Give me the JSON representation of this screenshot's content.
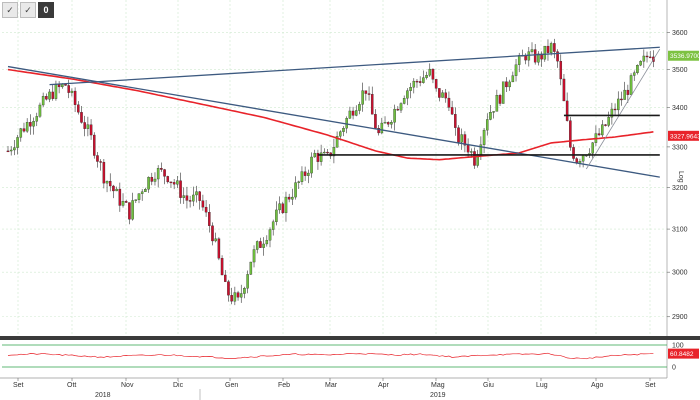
{
  "toolbar": {
    "items": [
      "✓",
      "✓",
      "0"
    ]
  },
  "chart_data": {
    "type": "candlestick",
    "y_ticks": [
      2900,
      3000,
      3100,
      3200,
      3300,
      3400,
      3500,
      3600
    ],
    "ylim": [
      2860,
      3640
    ],
    "x_month_labels": [
      "Set",
      "Ott",
      "Nov",
      "Dic",
      "Gen",
      "Feb",
      "Mar",
      "Apr",
      "Mag",
      "Giu",
      "Lug",
      "Ago",
      "Set"
    ],
    "x_year_labels": [
      "2018",
      "2019"
    ],
    "yaxis_label": "Log",
    "last_price_tag": "3536.9700",
    "ma_tag": "3327.9643",
    "oscillator_tag": "60.8482",
    "oscillator_ticks": [
      100,
      0
    ],
    "oscillator_level": 60.8,
    "colors": {
      "up": "#6fbf3f",
      "down": "#c8102e",
      "moving_average": "#e8232a",
      "trendline": "#3d5a80",
      "support": "#1a1a1a",
      "oscillator": "#e8232a",
      "oscillator_band": "#2ea34a",
      "price_tag": "#7dc242"
    },
    "price_path": [
      [
        0,
        3290
      ],
      [
        4,
        3340
      ],
      [
        10,
        3400
      ],
      [
        14,
        3440
      ],
      [
        18,
        3460
      ],
      [
        22,
        3390
      ],
      [
        26,
        3320
      ],
      [
        30,
        3230
      ],
      [
        34,
        3180
      ],
      [
        38,
        3140
      ],
      [
        42,
        3200
      ],
      [
        46,
        3240
      ],
      [
        50,
        3230
      ],
      [
        56,
        3170
      ],
      [
        60,
        3170
      ],
      [
        64,
        3090
      ],
      [
        68,
        2960
      ],
      [
        72,
        2930
      ],
      [
        76,
        3030
      ],
      [
        80,
        3080
      ],
      [
        84,
        3130
      ],
      [
        88,
        3180
      ],
      [
        92,
        3220
      ],
      [
        96,
        3280
      ],
      [
        100,
        3270
      ],
      [
        104,
        3340
      ],
      [
        108,
        3400
      ],
      [
        112,
        3450
      ],
      [
        114,
        3380
      ],
      [
        116,
        3330
      ],
      [
        120,
        3380
      ],
      [
        124,
        3440
      ],
      [
        128,
        3470
      ],
      [
        132,
        3490
      ],
      [
        134,
        3440
      ],
      [
        138,
        3420
      ],
      [
        140,
        3330
      ],
      [
        144,
        3300
      ],
      [
        146,
        3270
      ],
      [
        150,
        3380
      ],
      [
        154,
        3430
      ],
      [
        158,
        3500
      ],
      [
        162,
        3540
      ],
      [
        166,
        3530
      ],
      [
        170,
        3560
      ],
      [
        172,
        3520
      ],
      [
        174,
        3410
      ],
      [
        176,
        3300
      ],
      [
        178,
        3270
      ],
      [
        182,
        3300
      ],
      [
        186,
        3340
      ],
      [
        190,
        3400
      ],
      [
        194,
        3450
      ],
      [
        198,
        3510
      ],
      [
        200,
        3535
      ],
      [
        201,
        3550
      ],
      [
        202,
        3536
      ]
    ],
    "moving_average": [
      [
        0,
        3500
      ],
      [
        20,
        3475
      ],
      [
        40,
        3445
      ],
      [
        60,
        3410
      ],
      [
        80,
        3375
      ],
      [
        100,
        3330
      ],
      [
        115,
        3290
      ],
      [
        125,
        3272
      ],
      [
        135,
        3268
      ],
      [
        145,
        3275
      ],
      [
        160,
        3285
      ],
      [
        170,
        3310
      ],
      [
        180,
        3318
      ],
      [
        190,
        3325
      ],
      [
        202,
        3338
      ]
    ],
    "trendlines": [
      {
        "name": "upper-resistance",
        "from": [
          13,
          3460
        ],
        "to": [
          204,
          3560
        ]
      },
      {
        "name": "falling-line",
        "from": [
          0,
          3508
        ],
        "to": [
          204,
          3225
        ]
      },
      {
        "name": "rising-support",
        "from": [
          181,
          3245
        ],
        "to": [
          204,
          3555
        ]
      },
      {
        "name": "support-flat",
        "from": [
          97,
          3280
        ],
        "to": [
          204,
          3280
        ]
      },
      {
        "name": "resistance-flat",
        "from": [
          174,
          3380
        ],
        "to": [
          204,
          3380
        ]
      }
    ],
    "oscillator": [
      [
        0,
        55
      ],
      [
        10,
        60
      ],
      [
        20,
        52
      ],
      [
        30,
        45
      ],
      [
        40,
        52
      ],
      [
        50,
        55
      ],
      [
        60,
        48
      ],
      [
        70,
        40
      ],
      [
        80,
        50
      ],
      [
        90,
        58
      ],
      [
        100,
        55
      ],
      [
        110,
        62
      ],
      [
        120,
        55
      ],
      [
        130,
        58
      ],
      [
        140,
        45
      ],
      [
        150,
        55
      ],
      [
        160,
        58
      ],
      [
        170,
        60
      ],
      [
        175,
        42
      ],
      [
        180,
        38
      ],
      [
        190,
        52
      ],
      [
        202,
        61
      ]
    ],
    "total_bars": 205
  }
}
